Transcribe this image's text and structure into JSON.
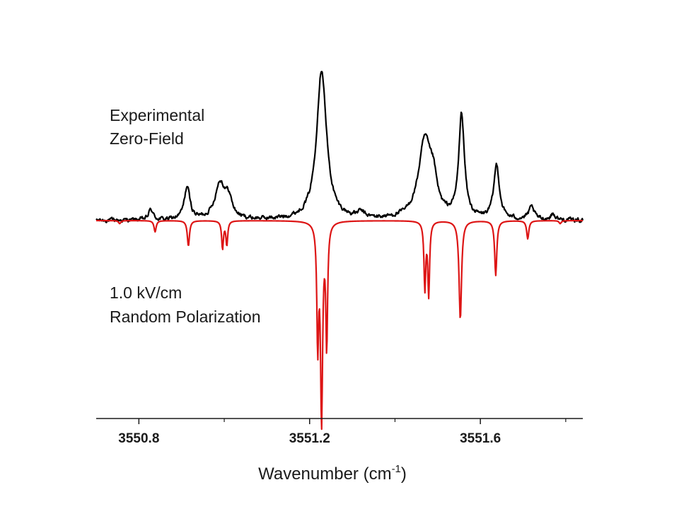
{
  "chart_data": {
    "type": "line",
    "title": "",
    "xlabel": "Wavenumber (cm",
    "xlabel_sup": "-1",
    "xlabel_suffix": ")",
    "ylabel": "",
    "xlim": [
      3550.7,
      3551.84
    ],
    "x_ticks": [
      3550.8,
      3551.2,
      3551.6
    ],
    "x_tick_labels": [
      "3550.8",
      "3551.2",
      "3551.6"
    ],
    "x_minor_ticks": [
      3551.0,
      3551.4,
      3551.8
    ],
    "y_axis_visible": false,
    "grid": false,
    "legend": "none",
    "annotations": [
      {
        "lines": [
          "Experimental",
          "Zero-Field"
        ]
      },
      {
        "lines": [
          "1.0 kV/cm",
          "Random Polarization"
        ]
      }
    ],
    "series": [
      {
        "color": "#000000",
        "baseline": 0,
        "noise": 0.012,
        "peaks": [
          {
            "x": 3550.828,
            "amp": 0.035,
            "w": 0.006
          },
          {
            "x": 3550.913,
            "amp": 0.107,
            "w": 0.008
          },
          {
            "x": 3550.99,
            "amp": 0.118,
            "w": 0.014
          },
          {
            "x": 3551.01,
            "amp": 0.06,
            "w": 0.01
          },
          {
            "x": 3551.228,
            "amp": 0.495,
            "w": 0.014
          },
          {
            "x": 3551.32,
            "amp": 0.018,
            "w": 0.01
          },
          {
            "x": 3551.47,
            "amp": 0.258,
            "w": 0.018
          },
          {
            "x": 3551.49,
            "amp": 0.085,
            "w": 0.01
          },
          {
            "x": 3551.556,
            "amp": 0.34,
            "w": 0.008
          },
          {
            "x": 3551.638,
            "amp": 0.178,
            "w": 0.008
          },
          {
            "x": 3551.72,
            "amp": 0.04,
            "w": 0.008
          },
          {
            "x": 3551.77,
            "amp": 0.02,
            "w": 0.006
          }
        ]
      },
      {
        "color": "#dd1515",
        "baseline": 0,
        "noise": 0,
        "peaks": [
          {
            "x": 3550.755,
            "amp": -0.01,
            "w": 0.003
          },
          {
            "x": 3550.838,
            "amp": -0.037,
            "w": 0.003
          },
          {
            "x": 3550.916,
            "amp": -0.084,
            "w": 0.003
          },
          {
            "x": 3550.996,
            "amp": -0.092,
            "w": 0.0025
          },
          {
            "x": 3551.006,
            "amp": -0.08,
            "w": 0.0025
          },
          {
            "x": 3551.219,
            "amp": -0.39,
            "w": 0.0025
          },
          {
            "x": 3551.228,
            "amp": -0.645,
            "w": 0.003
          },
          {
            "x": 3551.24,
            "amp": -0.4,
            "w": 0.0025
          },
          {
            "x": 3551.47,
            "amp": -0.22,
            "w": 0.0025
          },
          {
            "x": 3551.479,
            "amp": -0.24,
            "w": 0.0025
          },
          {
            "x": 3551.553,
            "amp": -0.325,
            "w": 0.0035
          },
          {
            "x": 3551.636,
            "amp": -0.18,
            "w": 0.003
          },
          {
            "x": 3551.711,
            "amp": -0.06,
            "w": 0.003
          },
          {
            "x": 3551.787,
            "amp": -0.01,
            "w": 0.003
          }
        ]
      }
    ]
  }
}
